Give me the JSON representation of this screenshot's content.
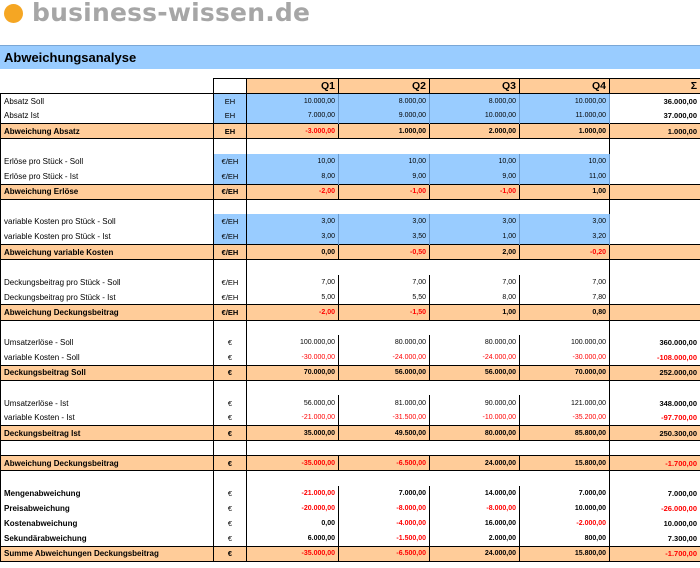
{
  "logo": {
    "text": "business-wissen.de"
  },
  "title": "Abweichungsanalyse",
  "columns": [
    "Q1",
    "Q2",
    "Q3",
    "Q4",
    "Σ"
  ],
  "rows": [
    {
      "kind": "head"
    },
    {
      "kind": "data",
      "blue": true,
      "label": "Absatz Soll",
      "unit": "EH",
      "values": [
        "10.000,00",
        "8.000,00",
        "8.000,00",
        "10.000,00"
      ],
      "sum": "36.000,00"
    },
    {
      "kind": "data",
      "blue": true,
      "label": "Absatz Ist",
      "unit": "EH",
      "values": [
        "7.000,00",
        "9.000,00",
        "10.000,00",
        "11.000,00"
      ],
      "sum": "37.000,00"
    },
    {
      "kind": "sub",
      "label": "Abweichung Absatz",
      "unit": "EH",
      "values": [
        "-3.000,00",
        "1.000,00",
        "2.000,00",
        "1.000,00"
      ],
      "sum": "1.000,00"
    },
    {
      "kind": "blank"
    },
    {
      "kind": "data",
      "blue": true,
      "label": "Erlöse pro Stück - Soll",
      "unit": "€/EH",
      "values": [
        "10,00",
        "10,00",
        "10,00",
        "10,00"
      ]
    },
    {
      "kind": "data",
      "blue": true,
      "label": "Erlöse pro Stück - Ist",
      "unit": "€/EH",
      "values": [
        "8,00",
        "9,00",
        "9,00",
        "11,00"
      ]
    },
    {
      "kind": "sub",
      "label": "Abweichung Erlöse",
      "unit": "€/EH",
      "values": [
        "-2,00",
        "-1,00",
        "-1,00",
        "1,00"
      ]
    },
    {
      "kind": "blank"
    },
    {
      "kind": "data",
      "blue": true,
      "label": "variable Kosten pro Stück - Soll",
      "unit": "€/EH",
      "values": [
        "3,00",
        "3,00",
        "3,00",
        "3,00"
      ]
    },
    {
      "kind": "data",
      "blue": true,
      "label": "variable Kosten pro Stück - Ist",
      "unit": "€/EH",
      "values": [
        "3,00",
        "3,50",
        "1,00",
        "3,20"
      ]
    },
    {
      "kind": "sub",
      "label": "Abweichung variable Kosten",
      "unit": "€/EH",
      "values": [
        "0,00",
        "-0,50",
        "2,00",
        "-0,20"
      ]
    },
    {
      "kind": "blank"
    },
    {
      "kind": "data",
      "label": "Deckungsbeitrag pro Stück - Soll",
      "unit": "€/EH",
      "values": [
        "7,00",
        "7,00",
        "7,00",
        "7,00"
      ]
    },
    {
      "kind": "data",
      "label": "Deckungsbeitrag pro Stück - Ist",
      "unit": "€/EH",
      "values": [
        "5,00",
        "5,50",
        "8,00",
        "7,80"
      ]
    },
    {
      "kind": "sub",
      "label": "Abweichung Deckungsbeitrag",
      "unit": "€/EH",
      "values": [
        "-2,00",
        "-1,50",
        "1,00",
        "0,80"
      ]
    },
    {
      "kind": "blank"
    },
    {
      "kind": "data",
      "label": "Umsatzerlöse - Soll",
      "unit": "€",
      "values": [
        "100.000,00",
        "80.000,00",
        "80.000,00",
        "100.000,00"
      ],
      "sum": "360.000,00"
    },
    {
      "kind": "data",
      "label": "variable Kosten - Soll",
      "unit": "€",
      "values": [
        "-30.000,00",
        "-24.000,00",
        "-24.000,00",
        "-30.000,00"
      ],
      "sum": "-108.000,00"
    },
    {
      "kind": "sub",
      "label": "Deckungsbeitrag Soll",
      "unit": "€",
      "values": [
        "70.000,00",
        "56.000,00",
        "56.000,00",
        "70.000,00"
      ],
      "sum": "252.000,00"
    },
    {
      "kind": "blank"
    },
    {
      "kind": "data",
      "label": "Umsatzerlöse - Ist",
      "unit": "€",
      "values": [
        "56.000,00",
        "81.000,00",
        "90.000,00",
        "121.000,00"
      ],
      "sum": "348.000,00"
    },
    {
      "kind": "data",
      "label": "variable Kosten - Ist",
      "unit": "€",
      "values": [
        "-21.000,00",
        "-31.500,00",
        "-10.000,00",
        "-35.200,00"
      ],
      "sum": "-97.700,00"
    },
    {
      "kind": "sub",
      "label": "Deckungsbeitrag Ist",
      "unit": "€",
      "values": [
        "35.000,00",
        "49.500,00",
        "80.000,00",
        "85.800,00"
      ],
      "sum": "250.300,00"
    },
    {
      "kind": "blank"
    },
    {
      "kind": "sub",
      "label": "Abweichung Deckungsbeitrag",
      "unit": "€",
      "values": [
        "-35.000,00",
        "-6.500,00",
        "24.000,00",
        "15.800,00"
      ],
      "sum": "-1.700,00"
    },
    {
      "kind": "blank"
    },
    {
      "kind": "data",
      "bold": true,
      "label": "Mengenabweichung",
      "unit": "€",
      "values": [
        "-21.000,00",
        "7.000,00",
        "14.000,00",
        "7.000,00"
      ],
      "sum": "7.000,00"
    },
    {
      "kind": "data",
      "bold": true,
      "label": "Preisabweichung",
      "unit": "€",
      "values": [
        "-20.000,00",
        "-8.000,00",
        "-8.000,00",
        "10.000,00"
      ],
      "sum": "-26.000,00"
    },
    {
      "kind": "data",
      "bold": true,
      "label": "Kostenabweichung",
      "unit": "€",
      "values": [
        "0,00",
        "-4.000,00",
        "16.000,00",
        "-2.000,00"
      ],
      "sum": "10.000,00"
    },
    {
      "kind": "data",
      "bold": true,
      "label": "Sekundärabweichung",
      "unit": "€",
      "values": [
        "6.000,00",
        "-1.500,00",
        "2.000,00",
        "800,00"
      ],
      "sum": "7.300,00"
    },
    {
      "kind": "sub",
      "label": "Summe Abweichungen Deckungsbeitrag",
      "unit": "€",
      "values": [
        "-35.000,00",
        "-6.500,00",
        "24.000,00",
        "15.800,00"
      ],
      "sum": "-1.700,00"
    }
  ],
  "colors": {
    "header_orange": "#ffcc99",
    "input_blue": "#99ccff",
    "negative_red": "#ff0000"
  }
}
